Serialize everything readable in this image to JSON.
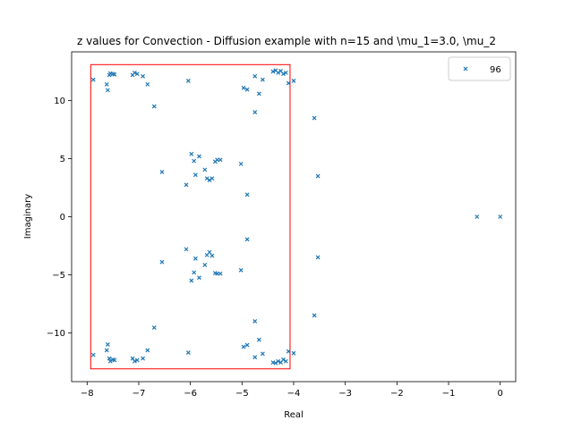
{
  "chart_data": {
    "type": "scatter",
    "title": "z values for Convection - Diffusion example with n=15 and \\mu_1=3.0, \\mu_2",
    "xlabel": "Real",
    "ylabel": "Imaginary",
    "xlim": [
      -8.3,
      0.3
    ],
    "ylim": [
      -14.2,
      14.2
    ],
    "xticks": [
      -8,
      -7,
      -6,
      -5,
      -4,
      -3,
      -2,
      -1,
      0
    ],
    "yticks": [
      -10,
      -5,
      0,
      5,
      10
    ],
    "grid": false,
    "legend_position": "top-right",
    "marker": "x",
    "colors": {
      "series": "#1f77b4",
      "box": "#ff0000"
    },
    "highlight_box": {
      "x": [
        -7.93,
        -4.07
      ],
      "y": [
        -13.1,
        13.1
      ]
    },
    "series": [
      {
        "name": "96",
        "points": [
          [
            -7.88,
            11.8
          ],
          [
            -7.62,
            11.4
          ],
          [
            -7.6,
            10.9
          ],
          [
            -7.57,
            12.2
          ],
          [
            -7.55,
            12.35
          ],
          [
            -7.5,
            12.3
          ],
          [
            -7.47,
            12.25
          ],
          [
            -7.12,
            12.2
          ],
          [
            -7.08,
            12.4
          ],
          [
            -7.03,
            12.3
          ],
          [
            -6.92,
            12.1
          ],
          [
            -6.83,
            11.4
          ],
          [
            -6.7,
            9.5
          ],
          [
            -6.04,
            11.7
          ],
          [
            -4.97,
            11.1
          ],
          [
            -4.9,
            10.95
          ],
          [
            -4.75,
            12.1
          ],
          [
            -4.75,
            9.0
          ],
          [
            -4.67,
            10.6
          ],
          [
            -4.6,
            11.8
          ],
          [
            -4.4,
            12.5
          ],
          [
            -4.35,
            12.6
          ],
          [
            -4.3,
            12.4
          ],
          [
            -4.25,
            12.55
          ],
          [
            -4.2,
            12.3
          ],
          [
            -4.15,
            12.4
          ],
          [
            -4.1,
            11.5
          ],
          [
            -4.0,
            11.7
          ],
          [
            -3.6,
            8.5
          ],
          [
            -3.53,
            3.5
          ],
          [
            -6.55,
            3.85
          ],
          [
            -6.08,
            2.75
          ],
          [
            -5.98,
            5.4
          ],
          [
            -5.93,
            4.8
          ],
          [
            -5.9,
            3.6
          ],
          [
            -5.83,
            5.2
          ],
          [
            -5.72,
            4.05
          ],
          [
            -5.68,
            3.3
          ],
          [
            -5.63,
            3.15
          ],
          [
            -5.58,
            3.3
          ],
          [
            -5.52,
            4.75
          ],
          [
            -5.48,
            4.9
          ],
          [
            -5.42,
            4.9
          ],
          [
            -5.02,
            4.55
          ],
          [
            -4.9,
            1.9
          ],
          [
            -0.45,
            0.0
          ],
          [
            0.0,
            0.0
          ],
          [
            -6.55,
            -3.9
          ],
          [
            -6.08,
            -2.8
          ],
          [
            -5.98,
            -5.5
          ],
          [
            -5.93,
            -4.8
          ],
          [
            -5.9,
            -3.6
          ],
          [
            -5.83,
            -5.25
          ],
          [
            -5.72,
            -4.15
          ],
          [
            -5.68,
            -3.3
          ],
          [
            -5.63,
            -3.05
          ],
          [
            -5.58,
            -3.35
          ],
          [
            -5.52,
            -4.85
          ],
          [
            -5.48,
            -4.9
          ],
          [
            -5.42,
            -4.9
          ],
          [
            -5.02,
            -4.6
          ],
          [
            -4.9,
            -1.95
          ],
          [
            -3.6,
            -8.5
          ],
          [
            -3.53,
            -3.5
          ],
          [
            -7.88,
            -11.9
          ],
          [
            -7.62,
            -11.5
          ],
          [
            -7.6,
            -11.0
          ],
          [
            -7.57,
            -12.2
          ],
          [
            -7.55,
            -12.45
          ],
          [
            -7.5,
            -12.3
          ],
          [
            -7.47,
            -12.35
          ],
          [
            -7.12,
            -12.2
          ],
          [
            -7.08,
            -12.45
          ],
          [
            -7.03,
            -12.35
          ],
          [
            -6.92,
            -12.2
          ],
          [
            -6.83,
            -11.5
          ],
          [
            -6.7,
            -9.55
          ],
          [
            -6.04,
            -11.7
          ],
          [
            -4.97,
            -11.2
          ],
          [
            -4.9,
            -11.05
          ],
          [
            -4.75,
            -12.1
          ],
          [
            -4.75,
            -9.0
          ],
          [
            -4.67,
            -10.6
          ],
          [
            -4.6,
            -11.8
          ],
          [
            -4.4,
            -12.55
          ],
          [
            -4.35,
            -12.6
          ],
          [
            -4.3,
            -12.45
          ],
          [
            -4.25,
            -12.55
          ],
          [
            -4.2,
            -12.3
          ],
          [
            -4.15,
            -12.45
          ],
          [
            -4.1,
            -11.6
          ],
          [
            -4.0,
            -11.75
          ]
        ]
      }
    ]
  }
}
